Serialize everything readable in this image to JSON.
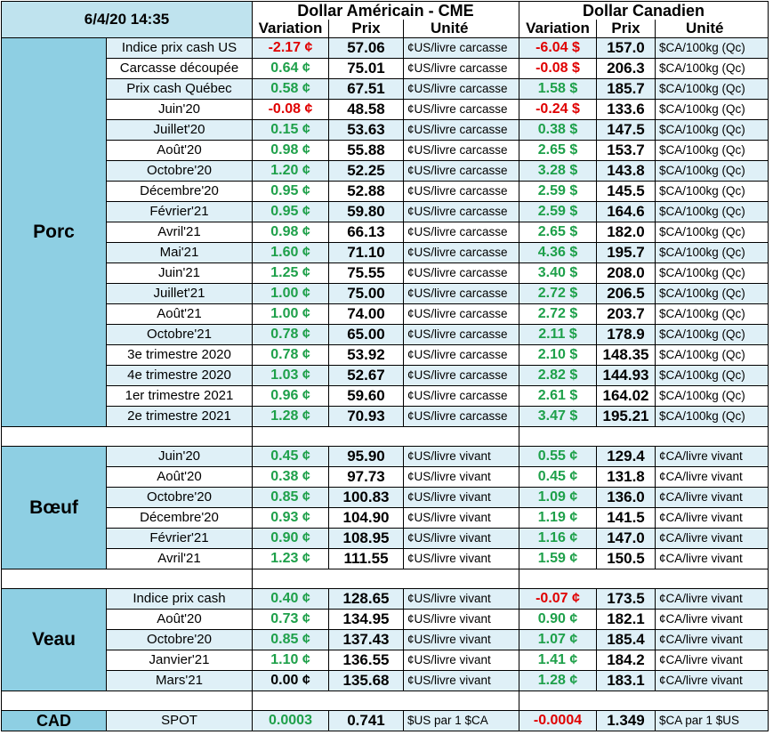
{
  "header": {
    "datetime": "6/4/20 14:35",
    "usd_title": "Dollar Américain - CME",
    "cad_title": "Dollar Canadien",
    "variation": "Variation",
    "prix": "Prix",
    "unite": "Unité"
  },
  "sections": [
    {
      "name": "Porc",
      "rows": [
        {
          "label": "Indice prix cash US",
          "us_var": "-2.17 ¢",
          "us_sign": "neg",
          "us_price": "57.06",
          "us_unit": "¢US/livre carcasse",
          "ca_var": "-6.04 $",
          "ca_sign": "neg",
          "ca_price": "157.0",
          "ca_unit": "$CA/100kg (Qc)"
        },
        {
          "label": "Carcasse découpée",
          "us_var": "0.64 ¢",
          "us_sign": "pos",
          "us_price": "75.01",
          "us_unit": "¢US/livre carcasse",
          "ca_var": "-0.08 $",
          "ca_sign": "neg",
          "ca_price": "206.3",
          "ca_unit": "$CA/100kg (Qc)"
        },
        {
          "label": "Prix cash Québec",
          "us_var": "0.58 ¢",
          "us_sign": "pos",
          "us_price": "67.51",
          "us_unit": "¢US/livre carcasse",
          "ca_var": "1.58 $",
          "ca_sign": "pos",
          "ca_price": "185.7",
          "ca_unit": "$CA/100kg (Qc)"
        },
        {
          "label": "Juin'20",
          "us_var": "-0.08 ¢",
          "us_sign": "neg",
          "us_price": "48.58",
          "us_unit": "¢US/livre carcasse",
          "ca_var": "-0.24 $",
          "ca_sign": "neg",
          "ca_price": "133.6",
          "ca_unit": "$CA/100kg (Qc)"
        },
        {
          "label": "Juillet'20",
          "us_var": "0.15 ¢",
          "us_sign": "pos",
          "us_price": "53.63",
          "us_unit": "¢US/livre carcasse",
          "ca_var": "0.38 $",
          "ca_sign": "pos",
          "ca_price": "147.5",
          "ca_unit": "$CA/100kg (Qc)"
        },
        {
          "label": "Août'20",
          "us_var": "0.98 ¢",
          "us_sign": "pos",
          "us_price": "55.88",
          "us_unit": "¢US/livre carcasse",
          "ca_var": "2.65 $",
          "ca_sign": "pos",
          "ca_price": "153.7",
          "ca_unit": "$CA/100kg (Qc)"
        },
        {
          "label": "Octobre'20",
          "us_var": "1.20 ¢",
          "us_sign": "pos",
          "us_price": "52.25",
          "us_unit": "¢US/livre carcasse",
          "ca_var": "3.28 $",
          "ca_sign": "pos",
          "ca_price": "143.8",
          "ca_unit": "$CA/100kg (Qc)"
        },
        {
          "label": "Décembre'20",
          "us_var": "0.95 ¢",
          "us_sign": "pos",
          "us_price": "52.88",
          "us_unit": "¢US/livre carcasse",
          "ca_var": "2.59 $",
          "ca_sign": "pos",
          "ca_price": "145.5",
          "ca_unit": "$CA/100kg (Qc)"
        },
        {
          "label": "Février'21",
          "us_var": "0.95 ¢",
          "us_sign": "pos",
          "us_price": "59.80",
          "us_unit": "¢US/livre carcasse",
          "ca_var": "2.59 $",
          "ca_sign": "pos",
          "ca_price": "164.6",
          "ca_unit": "$CA/100kg (Qc)"
        },
        {
          "label": "Avril'21",
          "us_var": "0.98 ¢",
          "us_sign": "pos",
          "us_price": "66.13",
          "us_unit": "¢US/livre carcasse",
          "ca_var": "2.65 $",
          "ca_sign": "pos",
          "ca_price": "182.0",
          "ca_unit": "$CA/100kg (Qc)"
        },
        {
          "label": "Mai'21",
          "us_var": "1.60 ¢",
          "us_sign": "pos",
          "us_price": "71.10",
          "us_unit": "¢US/livre carcasse",
          "ca_var": "4.36 $",
          "ca_sign": "pos",
          "ca_price": "195.7",
          "ca_unit": "$CA/100kg (Qc)"
        },
        {
          "label": "Juin'21",
          "us_var": "1.25 ¢",
          "us_sign": "pos",
          "us_price": "75.55",
          "us_unit": "¢US/livre carcasse",
          "ca_var": "3.40 $",
          "ca_sign": "pos",
          "ca_price": "208.0",
          "ca_unit": "$CA/100kg (Qc)"
        },
        {
          "label": "Juillet'21",
          "us_var": "1.00 ¢",
          "us_sign": "pos",
          "us_price": "75.00",
          "us_unit": "¢US/livre carcasse",
          "ca_var": "2.72 $",
          "ca_sign": "pos",
          "ca_price": "206.5",
          "ca_unit": "$CA/100kg (Qc)"
        },
        {
          "label": "Août'21",
          "us_var": "1.00 ¢",
          "us_sign": "pos",
          "us_price": "74.00",
          "us_unit": "¢US/livre carcasse",
          "ca_var": "2.72 $",
          "ca_sign": "pos",
          "ca_price": "203.7",
          "ca_unit": "$CA/100kg (Qc)"
        },
        {
          "label": "Octobre'21",
          "us_var": "0.78 ¢",
          "us_sign": "pos",
          "us_price": "65.00",
          "us_unit": "¢US/livre carcasse",
          "ca_var": "2.11 $",
          "ca_sign": "pos",
          "ca_price": "178.9",
          "ca_unit": "$CA/100kg (Qc)"
        },
        {
          "label": "3e trimestre 2020",
          "us_var": "0.78 ¢",
          "us_sign": "pos",
          "us_price": "53.92",
          "us_unit": "¢US/livre carcasse",
          "ca_var": "2.10 $",
          "ca_sign": "pos",
          "ca_price": "148.35",
          "ca_unit": "$CA/100kg (Qc)"
        },
        {
          "label": "4e trimestre 2020",
          "us_var": "1.03 ¢",
          "us_sign": "pos",
          "us_price": "52.67",
          "us_unit": "¢US/livre carcasse",
          "ca_var": "2.82 $",
          "ca_sign": "pos",
          "ca_price": "144.93",
          "ca_unit": "$CA/100kg (Qc)"
        },
        {
          "label": "1er trimestre 2021",
          "us_var": "0.96 ¢",
          "us_sign": "pos",
          "us_price": "59.60",
          "us_unit": "¢US/livre carcasse",
          "ca_var": "2.61 $",
          "ca_sign": "pos",
          "ca_price": "164.02",
          "ca_unit": "$CA/100kg (Qc)"
        },
        {
          "label": "2e trimestre 2021",
          "us_var": "1.28 ¢",
          "us_sign": "pos",
          "us_price": "70.93",
          "us_unit": "¢US/livre carcasse",
          "ca_var": "3.47 $",
          "ca_sign": "pos",
          "ca_price": "195.21",
          "ca_unit": "$CA/100kg (Qc)"
        }
      ]
    },
    {
      "name": "Bœuf",
      "rows": [
        {
          "label": "Juin'20",
          "us_var": "0.45 ¢",
          "us_sign": "pos",
          "us_price": "95.90",
          "us_unit": "¢US/livre vivant",
          "ca_var": "0.55 ¢",
          "ca_sign": "pos",
          "ca_price": "129.4",
          "ca_unit": "¢CA/livre vivant"
        },
        {
          "label": "Août'20",
          "us_var": "0.38 ¢",
          "us_sign": "pos",
          "us_price": "97.73",
          "us_unit": "¢US/livre vivant",
          "ca_var": "0.45 ¢",
          "ca_sign": "pos",
          "ca_price": "131.8",
          "ca_unit": "¢CA/livre vivant"
        },
        {
          "label": "Octobre'20",
          "us_var": "0.85 ¢",
          "us_sign": "pos",
          "us_price": "100.83",
          "us_unit": "¢US/livre vivant",
          "ca_var": "1.09 ¢",
          "ca_sign": "pos",
          "ca_price": "136.0",
          "ca_unit": "¢CA/livre vivant"
        },
        {
          "label": "Décembre'20",
          "us_var": "0.93 ¢",
          "us_sign": "pos",
          "us_price": "104.90",
          "us_unit": "¢US/livre vivant",
          "ca_var": "1.19 ¢",
          "ca_sign": "pos",
          "ca_price": "141.5",
          "ca_unit": "¢CA/livre vivant"
        },
        {
          "label": "Février'21",
          "us_var": "0.90 ¢",
          "us_sign": "pos",
          "us_price": "108.95",
          "us_unit": "¢US/livre vivant",
          "ca_var": "1.16 ¢",
          "ca_sign": "pos",
          "ca_price": "147.0",
          "ca_unit": "¢CA/livre vivant"
        },
        {
          "label": "Avril'21",
          "us_var": "1.23 ¢",
          "us_sign": "pos",
          "us_price": "111.55",
          "us_unit": "¢US/livre vivant",
          "ca_var": "1.59 ¢",
          "ca_sign": "pos",
          "ca_price": "150.5",
          "ca_unit": "¢CA/livre vivant"
        }
      ]
    },
    {
      "name": "Veau",
      "rows": [
        {
          "label": "Indice prix cash",
          "us_var": "0.40 ¢",
          "us_sign": "pos",
          "us_price": "128.65",
          "us_unit": "¢US/livre vivant",
          "ca_var": "-0.07 ¢",
          "ca_sign": "neg",
          "ca_price": "173.5",
          "ca_unit": "¢CA/livre vivant"
        },
        {
          "label": "Août'20",
          "us_var": "0.73 ¢",
          "us_sign": "pos",
          "us_price": "134.95",
          "us_unit": "¢US/livre vivant",
          "ca_var": "0.90 ¢",
          "ca_sign": "pos",
          "ca_price": "182.1",
          "ca_unit": "¢CA/livre vivant"
        },
        {
          "label": "Octobre'20",
          "us_var": "0.85 ¢",
          "us_sign": "pos",
          "us_price": "137.43",
          "us_unit": "¢US/livre vivant",
          "ca_var": "1.07 ¢",
          "ca_sign": "pos",
          "ca_price": "185.4",
          "ca_unit": "¢CA/livre vivant"
        },
        {
          "label": "Janvier'21",
          "us_var": "1.10 ¢",
          "us_sign": "pos",
          "us_price": "136.55",
          "us_unit": "¢US/livre vivant",
          "ca_var": "1.41 ¢",
          "ca_sign": "pos",
          "ca_price": "184.2",
          "ca_unit": "¢CA/livre vivant"
        },
        {
          "label": "Mars'21",
          "us_var": "0.00 ¢",
          "us_sign": "neu",
          "us_price": "135.68",
          "us_unit": "¢US/livre vivant",
          "ca_var": "1.28 ¢",
          "ca_sign": "pos",
          "ca_price": "183.1",
          "ca_unit": "¢CA/livre vivant"
        }
      ]
    },
    {
      "name": "CAD",
      "rows": [
        {
          "label": "SPOT",
          "us_var": "0.0003",
          "us_sign": "pos",
          "us_price": "0.741",
          "us_unit": "$US par 1 $CA",
          "ca_var": "-0.0004",
          "ca_sign": "neg",
          "ca_price": "1.349",
          "ca_unit": "$CA par 1 $US"
        }
      ]
    }
  ],
  "colors": {
    "positive": "#1ea04a",
    "negative": "#e00000",
    "category_bg": "#8ecfe3",
    "row_alt_bg": "#dff0f7"
  }
}
